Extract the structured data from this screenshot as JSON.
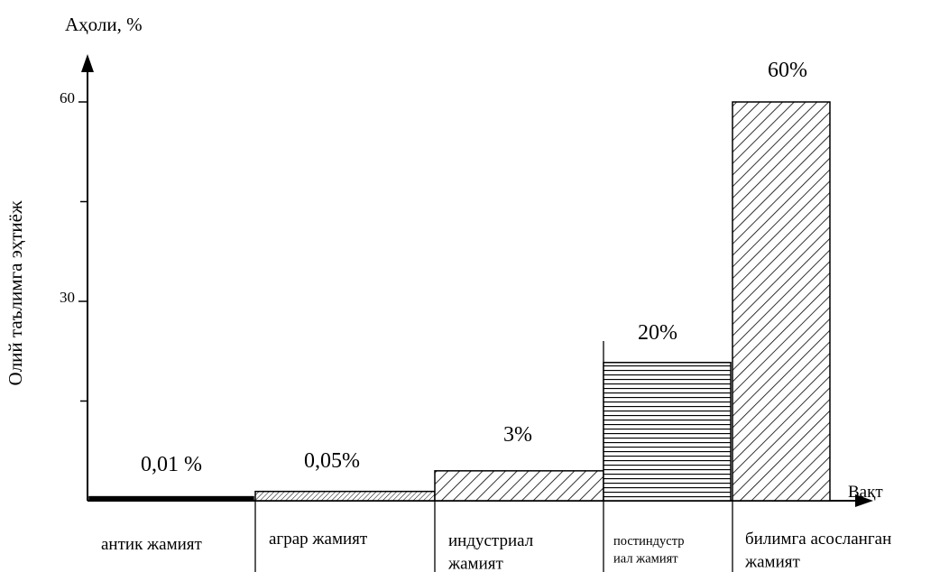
{
  "chart_data": {
    "type": "bar",
    "title": "",
    "ylabel_top": "Аҳоли, %",
    "ylabel_side": "Олий таълимга эҳтиёж",
    "xlabel": "Вақт",
    "ylim": [
      0,
      60
    ],
    "yticks": [
      {
        "value": 60,
        "label": "60"
      },
      {
        "value": 30,
        "label": "30"
      }
    ],
    "minor_ticks": [
      15,
      45
    ],
    "categories": [
      "антик жамият",
      "аграр жамият",
      "индустриал жамият",
      "постиндустриал жамият",
      "билимга асосланган жамият"
    ],
    "category_lines": [
      [
        "антик жамият"
      ],
      [
        "аграр жамият"
      ],
      [
        "индустриал",
        "жамият"
      ],
      [
        "постиндустр",
        "иал жамият"
      ],
      [
        "билимга асосланган",
        "жамият"
      ]
    ],
    "values": [
      0.01,
      0.05,
      3,
      20,
      60
    ],
    "display_heights": [
      0.6,
      1.4,
      4.5,
      20.8,
      60
    ],
    "data_labels": [
      "0,01 %",
      "0,05%",
      "3%",
      "20%",
      "60%"
    ],
    "patterns": [
      "solid",
      "fine-diagonal",
      "diagonal",
      "horizontal",
      "diagonal"
    ],
    "grid": false,
    "legend": "none"
  }
}
